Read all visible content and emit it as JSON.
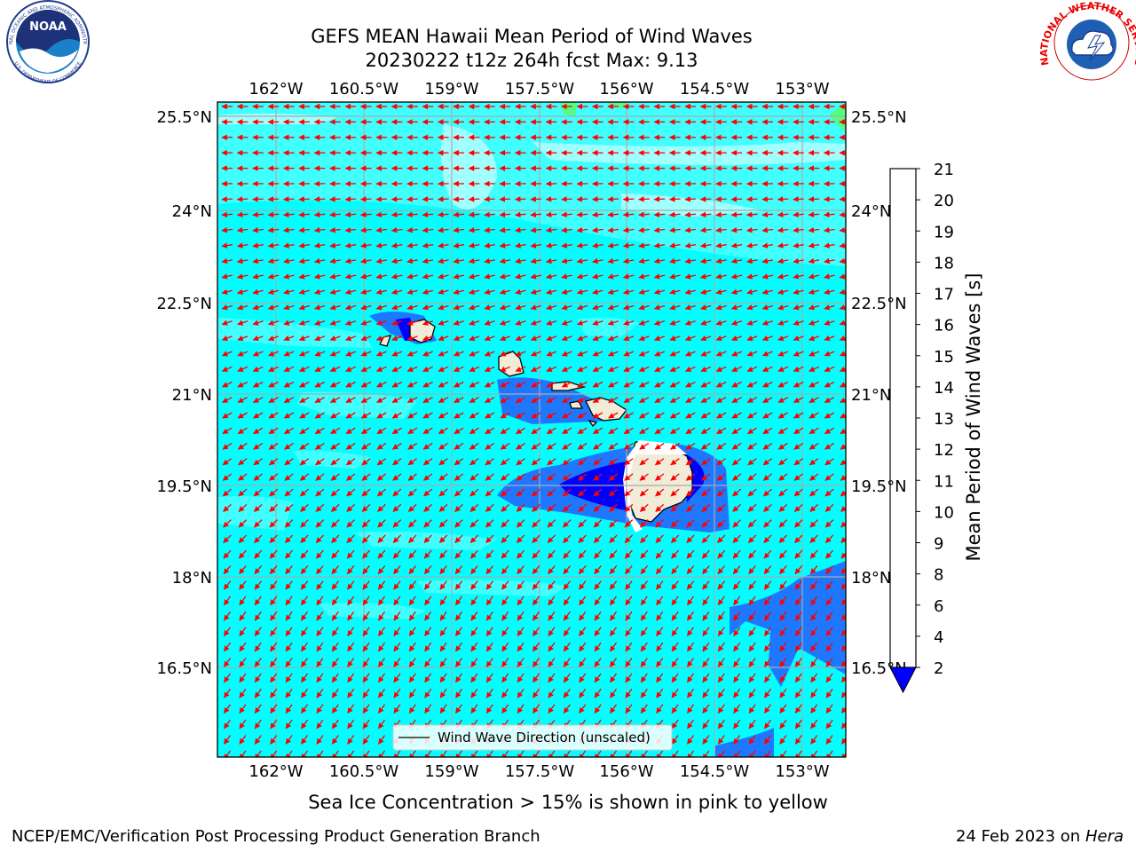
{
  "header": {
    "title_line1": "GEFS MEAN Hawaii Mean Period of Wind Waves",
    "title_line2": "20230222 t12z 264h fcst   Max: 9.13"
  },
  "logos": {
    "left": {
      "text": "NOAA",
      "ring_top": "NATIONAL OCEANIC AND ATMOSPHERIC ADMINISTRATION",
      "ring_bottom": "U.S. DEPARTMENT OF COMMERCE",
      "icon": "noaa-logo-icon"
    },
    "right": {
      "ring_text": "NATIONAL WEATHER SERVICE",
      "icon": "nws-logo-icon"
    }
  },
  "map": {
    "lon_ticks": [
      "162°W",
      "160.5°W",
      "159°W",
      "157.5°W",
      "156°W",
      "154.5°W",
      "153°W"
    ],
    "lat_ticks_left": [
      "25.5°N",
      "24°N",
      "22.5°N",
      "21°N",
      "19.5°N",
      "18°N",
      "16.5°N"
    ],
    "lat_ticks_right": [
      "25.5°N",
      "24°N",
      "22.5°N",
      "21°N",
      "19.5°N",
      "18°N",
      "16.5°N"
    ],
    "legend_label": "Wind Wave Direction (unscaled)",
    "arrow_color": "#ff0000",
    "land_color": "#f0ecd8",
    "grid_color": "#aaaaaa"
  },
  "colorbar": {
    "label": "Mean Period of Wind Waves [s]",
    "ticks": [
      "2",
      "4",
      "6",
      "8",
      "9",
      "10",
      "11",
      "12",
      "13",
      "14",
      "15",
      "16",
      "17",
      "18",
      "19",
      "20",
      "21"
    ],
    "colors": [
      "#1e78ff",
      "#00ffff",
      "#40ffff",
      "#a0ffff",
      "#50ff80",
      "#00e000",
      "#50e000",
      "#a0ec00",
      "#cdff00",
      "#e6ff00",
      "#ffff00",
      "#ffe000",
      "#ffbb00",
      "#ff8c00",
      "#ff5a00",
      "#ff2800",
      "#ff0000"
    ],
    "under_color": "#0000ff"
  },
  "footer": {
    "note": "Sea Ice Concentration > 15% is shown in pink to yellow",
    "credit": "NCEP/EMC/Verification Post Processing Product Generation Branch",
    "date": "24 Feb 2023 on",
    "machine": "Hera"
  }
}
